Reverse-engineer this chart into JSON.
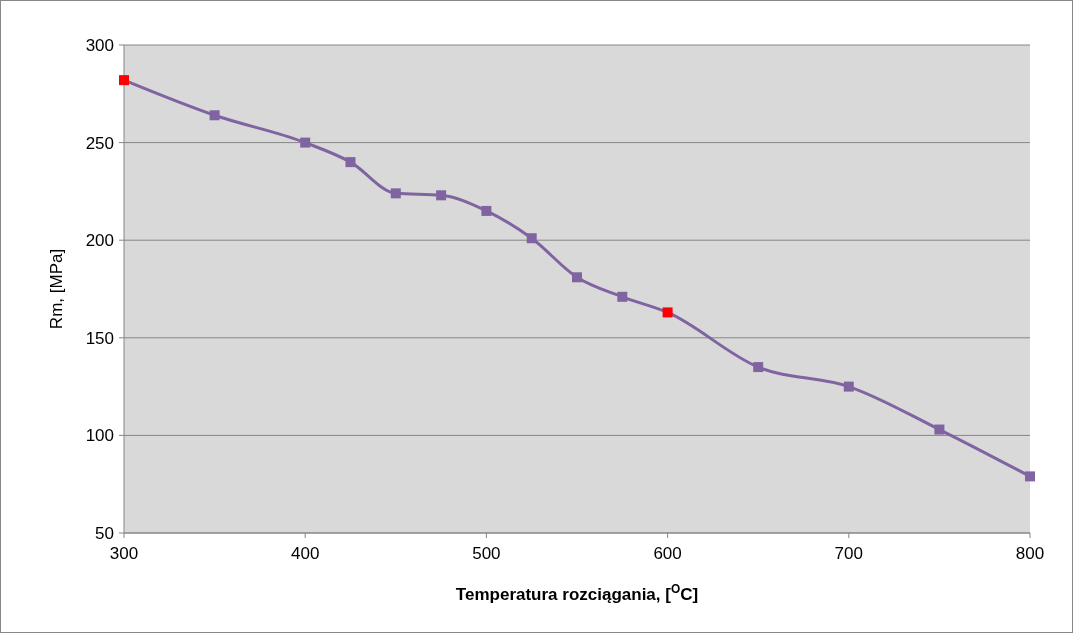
{
  "chart_data": {
    "type": "line",
    "xlabel": "Temperatura rozciągania, [$^{O}$C]",
    "ylabel": "Rm, [MPa]",
    "x": [
      300,
      350,
      400,
      425,
      450,
      475,
      500,
      525,
      550,
      575,
      600,
      650,
      700,
      750,
      800
    ],
    "series": [
      {
        "color": "#8064a2",
        "colors": [
          "#ff0000",
          "#8064a2",
          "#8064a2",
          "#8064a2",
          "#8064a2",
          "#8064a2",
          "#8064a2",
          "#8064a2",
          "#8064a2",
          "#8064a2",
          "#ff0000",
          "#8064a2",
          "#8064a2",
          "#8064a2",
          "#8064a2"
        ],
        "values": [
          282,
          264,
          250,
          240,
          224,
          223,
          215,
          201,
          181,
          171,
          163,
          135,
          125,
          103,
          79
        ]
      }
    ],
    "xlim": [
      300,
      800
    ],
    "xticks": [
      300,
      400,
      500,
      600,
      700,
      800
    ],
    "ylim": [
      50,
      300
    ],
    "yticks": [
      50,
      100,
      150,
      200,
      250,
      300
    ],
    "grid": "y",
    "marker": "square",
    "line_style": "solid"
  }
}
